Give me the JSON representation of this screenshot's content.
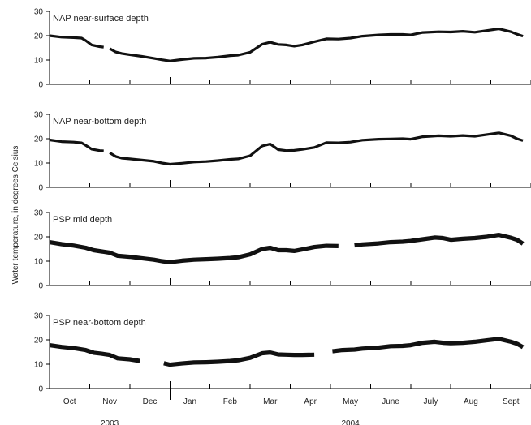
{
  "chart_data": {
    "type": "line",
    "ylabel": "Water temperature, in degrees Celsius",
    "yticks": [
      "0",
      "10",
      "20",
      "30"
    ],
    "ylim": [
      0,
      30
    ],
    "months": [
      "Oct",
      "Nov",
      "Dec",
      "Jan",
      "Feb",
      "Mar",
      "Apr",
      "May",
      "June",
      "July",
      "Aug",
      "Sept"
    ],
    "years": [
      {
        "label": "2003",
        "months": [
          "Oct",
          "Nov",
          "Dec"
        ]
      },
      {
        "label": "2004",
        "months": [
          "Jan",
          "Feb",
          "Mar",
          "Apr",
          "May",
          "June",
          "July",
          "Aug",
          "Sept"
        ]
      }
    ],
    "grid": false,
    "panels": [
      {
        "title": "NAP near-surface depth",
        "segments": [
          [
            [
              0.0,
              20.0
            ],
            [
              0.3,
              19.4
            ],
            [
              0.6,
              19.2
            ],
            [
              0.8,
              19.0
            ],
            [
              0.9,
              18.0
            ],
            [
              1.05,
              16.2
            ],
            [
              1.25,
              15.5
            ],
            [
              1.35,
              15.3
            ]
          ],
          [
            [
              1.5,
              14.7
            ],
            [
              1.65,
              13.3
            ],
            [
              1.8,
              12.7
            ],
            [
              2.0,
              12.2
            ],
            [
              2.3,
              11.5
            ],
            [
              2.6,
              10.7
            ],
            [
              2.8,
              10.1
            ],
            [
              3.0,
              9.6
            ],
            [
              3.3,
              10.2
            ],
            [
              3.6,
              10.7
            ],
            [
              3.9,
              10.8
            ],
            [
              4.2,
              11.2
            ],
            [
              4.5,
              11.8
            ],
            [
              4.7,
              12.0
            ],
            [
              5.0,
              13.2
            ],
            [
              5.3,
              16.5
            ],
            [
              5.5,
              17.3
            ],
            [
              5.7,
              16.4
            ],
            [
              5.9,
              16.2
            ],
            [
              6.1,
              15.7
            ],
            [
              6.3,
              16.2
            ],
            [
              6.6,
              17.5
            ],
            [
              6.9,
              18.7
            ],
            [
              7.2,
              18.6
            ],
            [
              7.5,
              19.0
            ],
            [
              7.8,
              19.8
            ],
            [
              8.2,
              20.3
            ],
            [
              8.5,
              20.5
            ],
            [
              8.8,
              20.5
            ],
            [
              9.0,
              20.3
            ],
            [
              9.3,
              21.3
            ],
            [
              9.7,
              21.6
            ],
            [
              10.0,
              21.5
            ],
            [
              10.3,
              21.8
            ],
            [
              10.6,
              21.4
            ],
            [
              10.9,
              22.1
            ],
            [
              11.2,
              22.8
            ],
            [
              11.5,
              21.6
            ],
            [
              11.65,
              20.6
            ],
            [
              11.8,
              19.8
            ]
          ]
        ]
      },
      {
        "title": "NAP near-bottom depth",
        "segments": [
          [
            [
              0.0,
              19.5
            ],
            [
              0.3,
              18.8
            ],
            [
              0.6,
              18.6
            ],
            [
              0.8,
              18.3
            ],
            [
              0.9,
              17.3
            ],
            [
              1.05,
              15.7
            ],
            [
              1.25,
              15.1
            ],
            [
              1.35,
              15.0
            ]
          ],
          [
            [
              1.5,
              14.2
            ],
            [
              1.65,
              12.7
            ],
            [
              1.8,
              12.0
            ],
            [
              2.0,
              11.7
            ],
            [
              2.3,
              11.2
            ],
            [
              2.6,
              10.7
            ],
            [
              2.8,
              10.0
            ],
            [
              3.0,
              9.5
            ],
            [
              3.3,
              9.9
            ],
            [
              3.6,
              10.4
            ],
            [
              3.9,
              10.6
            ],
            [
              4.2,
              11.0
            ],
            [
              4.5,
              11.5
            ],
            [
              4.7,
              11.7
            ],
            [
              5.0,
              13.0
            ],
            [
              5.3,
              17.0
            ],
            [
              5.5,
              17.8
            ],
            [
              5.7,
              15.5
            ],
            [
              5.9,
              15.1
            ],
            [
              6.1,
              15.2
            ],
            [
              6.3,
              15.6
            ],
            [
              6.6,
              16.4
            ],
            [
              6.9,
              18.4
            ],
            [
              7.2,
              18.3
            ],
            [
              7.5,
              18.6
            ],
            [
              7.8,
              19.4
            ],
            [
              8.2,
              19.8
            ],
            [
              8.5,
              19.9
            ],
            [
              8.8,
              20.0
            ],
            [
              9.0,
              19.8
            ],
            [
              9.3,
              20.8
            ],
            [
              9.7,
              21.2
            ],
            [
              10.0,
              21.0
            ],
            [
              10.3,
              21.3
            ],
            [
              10.6,
              21.0
            ],
            [
              10.9,
              21.7
            ],
            [
              11.2,
              22.4
            ],
            [
              11.5,
              21.2
            ],
            [
              11.65,
              20.0
            ],
            [
              11.8,
              19.2
            ]
          ]
        ]
      },
      {
        "title": "PSP mid depth",
        "segments": [
          [
            [
              0.0,
              17.8
            ],
            [
              0.3,
              17.0
            ],
            [
              0.6,
              16.4
            ],
            [
              0.9,
              15.5
            ],
            [
              1.1,
              14.5
            ],
            [
              1.3,
              14.0
            ],
            [
              1.5,
              13.5
            ],
            [
              1.7,
              12.2
            ],
            [
              2.0,
              11.8
            ],
            [
              2.3,
              11.2
            ],
            [
              2.6,
              10.6
            ],
            [
              2.8,
              10.0
            ],
            [
              3.0,
              9.6
            ],
            [
              3.3,
              10.2
            ],
            [
              3.6,
              10.6
            ],
            [
              3.9,
              10.8
            ],
            [
              4.2,
              11.0
            ],
            [
              4.5,
              11.3
            ],
            [
              4.7,
              11.6
            ],
            [
              5.0,
              12.8
            ],
            [
              5.3,
              15.0
            ],
            [
              5.5,
              15.5
            ],
            [
              5.7,
              14.5
            ],
            [
              5.9,
              14.5
            ],
            [
              6.1,
              14.2
            ],
            [
              6.3,
              14.8
            ],
            [
              6.6,
              15.8
            ],
            [
              6.9,
              16.3
            ],
            [
              7.2,
              16.2
            ]
          ],
          [
            [
              7.6,
              16.5
            ],
            [
              7.8,
              16.9
            ],
            [
              8.2,
              17.3
            ],
            [
              8.5,
              17.8
            ],
            [
              8.8,
              18.0
            ],
            [
              9.0,
              18.3
            ],
            [
              9.3,
              19.0
            ],
            [
              9.6,
              19.7
            ],
            [
              9.8,
              19.5
            ],
            [
              10.0,
              18.8
            ],
            [
              10.3,
              19.2
            ],
            [
              10.6,
              19.5
            ],
            [
              10.9,
              20.0
            ],
            [
              11.2,
              20.8
            ],
            [
              11.5,
              19.6
            ],
            [
              11.65,
              18.8
            ],
            [
              11.8,
              17.2
            ]
          ]
        ]
      },
      {
        "title": "PSP near-bottom depth",
        "segments": [
          [
            [
              0.0,
              17.8
            ],
            [
              0.3,
              17.1
            ],
            [
              0.6,
              16.6
            ],
            [
              0.9,
              15.8
            ],
            [
              1.1,
              14.7
            ],
            [
              1.3,
              14.3
            ],
            [
              1.5,
              13.8
            ],
            [
              1.7,
              12.4
            ],
            [
              2.0,
              12.0
            ],
            [
              2.25,
              11.3
            ]
          ],
          [
            [
              2.85,
              10.4
            ],
            [
              3.0,
              9.8
            ],
            [
              3.3,
              10.3
            ],
            [
              3.6,
              10.7
            ],
            [
              3.9,
              10.8
            ],
            [
              4.2,
              11.0
            ],
            [
              4.5,
              11.3
            ],
            [
              4.7,
              11.6
            ],
            [
              5.0,
              12.6
            ],
            [
              5.3,
              14.5
            ],
            [
              5.5,
              14.8
            ],
            [
              5.7,
              14.0
            ],
            [
              5.9,
              13.9
            ],
            [
              6.1,
              13.8
            ],
            [
              6.3,
              13.8
            ],
            [
              6.6,
              13.9
            ]
          ],
          [
            [
              7.05,
              15.3
            ],
            [
              7.3,
              15.8
            ],
            [
              7.6,
              16.0
            ],
            [
              7.8,
              16.4
            ],
            [
              8.2,
              16.8
            ],
            [
              8.5,
              17.4
            ],
            [
              8.8,
              17.5
            ],
            [
              9.0,
              17.8
            ],
            [
              9.3,
              18.8
            ],
            [
              9.6,
              19.2
            ],
            [
              9.8,
              18.8
            ],
            [
              10.0,
              18.6
            ],
            [
              10.3,
              18.8
            ],
            [
              10.6,
              19.2
            ],
            [
              10.9,
              19.8
            ],
            [
              11.2,
              20.4
            ],
            [
              11.5,
              19.2
            ],
            [
              11.65,
              18.4
            ],
            [
              11.8,
              17.0
            ]
          ]
        ]
      }
    ]
  }
}
